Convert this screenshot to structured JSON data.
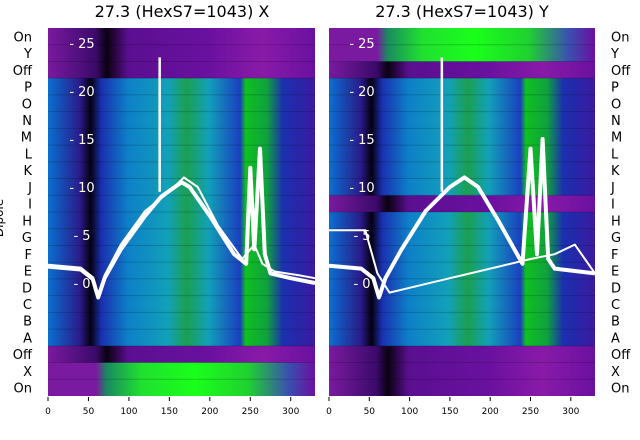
{
  "colors": {
    "background": "#ffffff",
    "heatmap_low": "#000000",
    "heatmap_purple": "#7a0fa0",
    "heatmap_blue": "#0a14d8",
    "heatmap_cyan": "#0aa0c8",
    "heatmap_green": "#19ff19",
    "trace": "#ffffff"
  },
  "chart_data": [
    {
      "type": "heatmap",
      "title": "27.3 (HexS7=1043) X",
      "ylabel": "Dipole",
      "xlim": [
        0,
        330
      ],
      "x_ticks": [
        0,
        50,
        100,
        150,
        200,
        250,
        300
      ],
      "y_categories": [
        "On",
        "X",
        "Off",
        "A",
        "B",
        "C",
        "D",
        "E",
        "F",
        "G",
        "H",
        "I",
        "J",
        "K",
        "L",
        "M",
        "N",
        "O",
        "P",
        "Off",
        "Y",
        "On"
      ],
      "inner_y_ticks": [
        0,
        5,
        10,
        15,
        20,
        25
      ],
      "bands": [
        {
          "row_from": 0,
          "row_to": 1,
          "level": "green"
        },
        {
          "row_from": 2,
          "row_to": 2,
          "level": "purple"
        },
        {
          "row_from": 3,
          "row_to": 8,
          "level": "blue"
        },
        {
          "row_from": 9,
          "row_to": 9,
          "level": "blue"
        },
        {
          "row_from": 10,
          "row_to": 11,
          "level": "blue"
        },
        {
          "row_from": 12,
          "row_to": 18,
          "level": "blue"
        },
        {
          "row_from": 19,
          "row_to": 21,
          "level": "purple"
        }
      ],
      "traces": [
        {
          "x": [
            0,
            40,
            55,
            62,
            70,
            90,
            120,
            140,
            165,
            175,
            200,
            230,
            245,
            250,
            255,
            262,
            268,
            275,
            300,
            330
          ],
          "y": [
            1.8,
            1.5,
            0.5,
            -1.5,
            0.5,
            3.5,
            7.0,
            9.0,
            10.5,
            10.0,
            7.0,
            3.0,
            2.0,
            12.0,
            3.5,
            14.0,
            3.0,
            1.0,
            0.5,
            0.0
          ]
        },
        {
          "x": [
            0,
            40,
            55,
            62,
            70,
            90,
            120,
            150,
            168,
            185,
            210,
            240,
            255,
            265,
            280,
            310,
            330
          ],
          "y": [
            1.6,
            1.3,
            0.3,
            -1.2,
            0.8,
            4.0,
            7.5,
            9.5,
            11.0,
            10.0,
            6.0,
            2.5,
            4.0,
            2.0,
            1.2,
            0.8,
            0.5
          ]
        }
      ],
      "spike": {
        "x": 138,
        "y_from": 9.5,
        "y_to": 23.5
      }
    },
    {
      "type": "heatmap",
      "title": "27.3 (HexS7=1043) Y",
      "ylabel": "",
      "xlim": [
        0,
        330
      ],
      "x_ticks": [
        0,
        50,
        100,
        150,
        200,
        250,
        300
      ],
      "y_categories": [
        "On",
        "X",
        "Off",
        "A",
        "B",
        "C",
        "D",
        "E",
        "F",
        "G",
        "H",
        "I",
        "J",
        "K",
        "L",
        "M",
        "N",
        "O",
        "P",
        "Off",
        "Y",
        "On"
      ],
      "inner_y_ticks": [
        0,
        5,
        10,
        15,
        20,
        25
      ],
      "bands": [
        {
          "row_from": 0,
          "row_to": 1,
          "level": "purple"
        },
        {
          "row_from": 2,
          "row_to": 2,
          "level": "purple"
        },
        {
          "row_from": 3,
          "row_to": 10,
          "level": "blue"
        },
        {
          "row_from": 11,
          "row_to": 11,
          "level": "purple"
        },
        {
          "row_from": 12,
          "row_to": 18,
          "level": "blue"
        },
        {
          "row_from": 19,
          "row_to": 19,
          "level": "purple"
        },
        {
          "row_from": 20,
          "row_to": 21,
          "level": "green"
        }
      ],
      "traces": [
        {
          "x": [
            0,
            40,
            55,
            62,
            70,
            90,
            120,
            150,
            168,
            185,
            210,
            240,
            250,
            258,
            265,
            272,
            280,
            330
          ],
          "y": [
            1.8,
            1.5,
            0.5,
            -1.5,
            0.5,
            3.5,
            7.5,
            10.0,
            11.0,
            10.0,
            6.5,
            2.0,
            14.0,
            3.0,
            15.0,
            2.5,
            1.5,
            1.0
          ]
        },
        {
          "x": [
            0,
            45,
            60,
            75,
            100,
            150,
            200,
            250,
            280,
            305,
            330
          ],
          "y": [
            5.5,
            5.5,
            1.0,
            -1.0,
            -0.5,
            0.5,
            1.5,
            2.5,
            3.0,
            4.0,
            1.0
          ]
        }
      ],
      "spike": {
        "x": 140,
        "y_from": 9.5,
        "y_to": 23.5
      }
    }
  ]
}
